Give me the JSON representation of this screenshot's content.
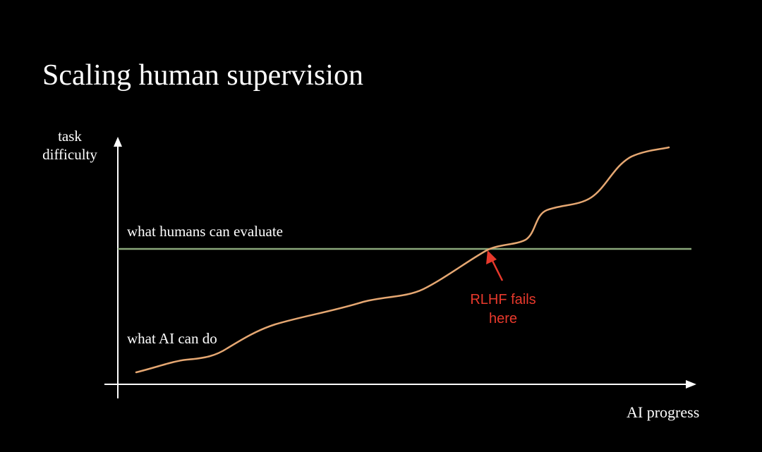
{
  "slide": {
    "title": "Scaling human supervision"
  },
  "axes": {
    "y_label_line1": "task",
    "y_label_line2": "difficulty",
    "x_label": "AI progress"
  },
  "lines": {
    "human_label": "what humans can evaluate",
    "ai_label": "what AI can do"
  },
  "annotation": {
    "line1": "RLHF fails",
    "line2": "here"
  },
  "colors": {
    "background": "#000000",
    "text": "#ffffff",
    "axes": "#ffffff",
    "human_line": "#8aa77a",
    "ai_curve": "#e5a772",
    "annotation": "#e8392c"
  }
}
